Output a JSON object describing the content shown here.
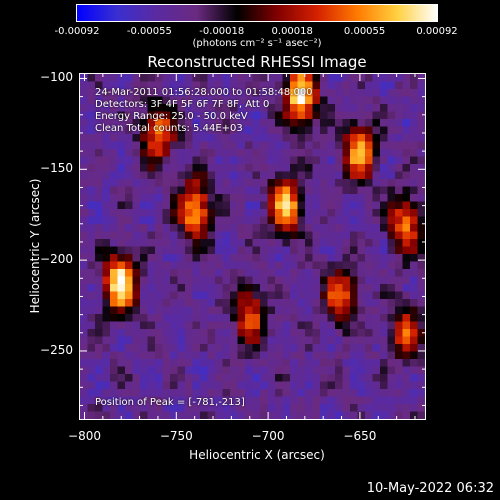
{
  "colorbar": {
    "min": -0.00092,
    "max": 0.00092,
    "tick_labels": [
      "-0.00092",
      "-0.00055",
      "-0.00018",
      "0.00018",
      "0.00055",
      "0.00092"
    ],
    "unit_label": "(photons cm⁻² s⁻¹ asec⁻²)",
    "colormap": [
      "#0000ff",
      "#3a2fd0",
      "#5a2aa0",
      "#6a2a80",
      "#000000",
      "#800000",
      "#d42000",
      "#ff7a00",
      "#ffd040",
      "#ffffff"
    ]
  },
  "chart_data": {
    "type": "heatmap",
    "title": "Reconstructed RHESSI Image",
    "xlabel": "Heliocentric X (arcsec)",
    "ylabel": "Heliocentric Y (arcsec)",
    "xlim": [
      -803,
      -614
    ],
    "ylim": [
      -288,
      -97
    ],
    "x_ticks": [
      -800,
      -750,
      -700,
      -650
    ],
    "y_ticks": [
      -100,
      -150,
      -200,
      -250
    ],
    "x_tick_labels": [
      "−800",
      "−750",
      "−700",
      "−650"
    ],
    "y_tick_labels": [
      "−100",
      "−150",
      "−200",
      "−250"
    ],
    "sources": [
      {
        "x": -781,
        "y": -213,
        "value": 0.00092
      },
      {
        "x": -740,
        "y": -172,
        "value": 0.0007
      },
      {
        "x": -690,
        "y": -170,
        "value": 0.00072
      },
      {
        "x": -682,
        "y": -110,
        "value": 0.00085
      },
      {
        "x": -760,
        "y": -130,
        "value": 0.00055
      },
      {
        "x": -650,
        "y": -140,
        "value": 0.0006
      },
      {
        "x": -625,
        "y": -180,
        "value": 0.0005
      },
      {
        "x": -710,
        "y": -230,
        "value": 0.0004
      },
      {
        "x": -660,
        "y": -220,
        "value": 0.00045
      },
      {
        "x": -625,
        "y": -240,
        "value": 0.00035
      }
    ],
    "peak": {
      "x": -781,
      "y": -213
    }
  },
  "info": {
    "time_range": "24-Mar-2011 01:56:28.000 to 01:58:48.000",
    "detectors": "Detectors: 3F 4F 5F 6F 7F 8F, Att 0",
    "energy_range": "Energy Range: 25.0 - 50.0 keV",
    "clean_counts": "Clean     Total counts: 5.44E+03",
    "peak_position": "Position of Peak = [-781,-213]"
  },
  "footer": {
    "timestamp": "10-May-2022 06:32"
  }
}
